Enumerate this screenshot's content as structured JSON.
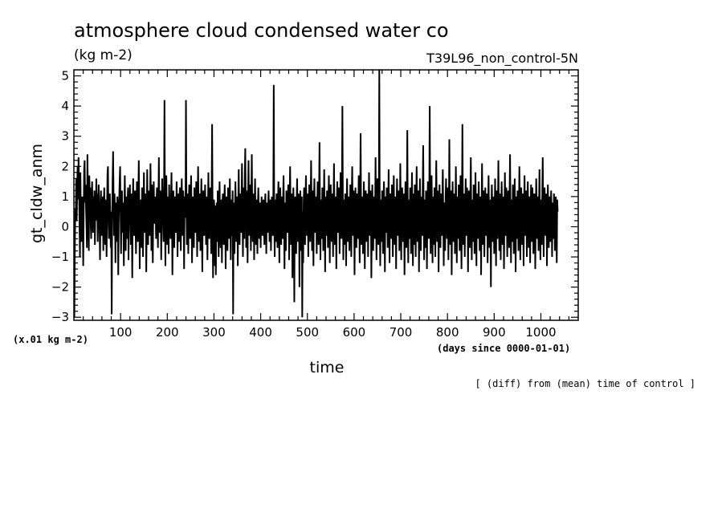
{
  "chart_data": {
    "type": "line",
    "title": "atmosphere cloud condensed water co",
    "units": "(kg m-2)",
    "experiment": "T39L96_non_control-5N",
    "xlabel": "time",
    "ylabel": "gt_cldw_anm",
    "x_units": "(days since 0000-01-01)",
    "y_scale_note": "(x.01 kg m-2)",
    "footnote": "[ (diff) from (mean) time of control ]",
    "xlim": [
      0,
      1080
    ],
    "ylim": [
      -3.1,
      5.2
    ],
    "x_ticks": [
      100,
      200,
      300,
      400,
      500,
      600,
      700,
      800,
      900,
      1000
    ],
    "x_tick_labels": [
      "100",
      "200",
      "300",
      "400",
      "500",
      "600",
      "700",
      "800",
      "900",
      "1000"
    ],
    "y_ticks": [
      -3,
      -2,
      -1,
      0,
      1,
      2,
      3,
      4,
      5
    ],
    "y_tick_labels": [
      "−3",
      "−2",
      "−1",
      "0",
      "1",
      "2",
      "3",
      "4",
      "5"
    ],
    "grid": false,
    "series": [
      {
        "color": "#000000",
        "x_start": 1,
        "x_step": 1,
        "values": [
          -3.0,
          -0.8,
          0.6,
          0.3,
          1.6,
          0.2,
          1.2,
          2.0,
          0.9,
          2.3,
          1.5,
          0.1,
          -1.0,
          1.8,
          0.4,
          -0.5,
          0.7,
          1.0,
          0.2,
          -1.3,
          0.5,
          1.9,
          2.2,
          0.8,
          1.4,
          0.6,
          0.0,
          -0.7,
          2.4,
          1.1,
          0.3,
          -0.8,
          1.7,
          0.9,
          1.3,
          0.1,
          -0.4,
          0.8,
          1.5,
          0.6,
          -0.2,
          1.0,
          0.4,
          1.2,
          -0.6,
          0.9,
          0.2,
          1.6,
          0.7,
          1.1,
          -0.5,
          0.3,
          1.4,
          0.8,
          0.0,
          -1.1,
          0.6,
          1.2,
          0.3,
          -0.3,
          0.5,
          1.0,
          -0.8,
          0.7,
          1.3,
          0.2,
          -0.6,
          0.9,
          0.4,
          -1.0,
          0.6,
          1.8,
          2.0,
          0.3,
          -0.4,
          0.8,
          1.1,
          0.2,
          -0.7,
          0.5,
          -2.9,
          0.4,
          1.6,
          2.5,
          0.9,
          -0.3,
          1.1,
          0.6,
          -1.2,
          0.8,
          0.3,
          -0.5,
          1.0,
          0.7,
          -1.6,
          0.2,
          0.9,
          1.5,
          2.0,
          0.4,
          -0.9,
          0.6,
          1.2,
          -0.2,
          0.8,
          0.1,
          -1.3,
          0.5,
          1.7,
          0.3,
          -0.8,
          1.0,
          0.6,
          -0.4,
          0.9,
          1.3,
          -1.1,
          0.2,
          0.7,
          1.4,
          0.5,
          -0.6,
          1.1,
          0.3,
          -1.7,
          0.8,
          1.6,
          0.4,
          -0.3,
          0.9,
          1.2,
          0.1,
          -0.9,
          0.6,
          1.5,
          0.2,
          -0.5,
          1.0,
          2.2,
          0.7,
          -1.4,
          0.5,
          0.9,
          0.3,
          -0.7,
          1.3,
          0.6,
          -1.0,
          0.8,
          1.8,
          0.4,
          -0.2,
          1.1,
          0.7,
          -1.5,
          0.3,
          1.9,
          0.6,
          -0.6,
          1.2,
          0.9,
          -0.3,
          0.5,
          2.1,
          0.8,
          -0.8,
          1.4,
          0.2,
          -1.2,
          0.7,
          1.5,
          0.4,
          0.1,
          1.0,
          0.6,
          -0.4,
          0.9,
          1.3,
          0.3,
          -0.7,
          0.8,
          2.3,
          0.5,
          -0.2,
          1.2,
          0.7,
          -1.1,
          0.4,
          1.6,
          0.9,
          0.2,
          -0.5,
          1.1,
          4.2,
          0.6,
          -1.3,
          0.8,
          1.7,
          0.3,
          -0.6,
          1.0,
          0.5,
          -0.9,
          1.4,
          0.7,
          0.1,
          -0.4,
          0.9,
          1.8,
          0.4,
          -1.6,
          0.6,
          1.2,
          0.3,
          -0.7,
          1.0,
          0.8,
          -0.2,
          0.5,
          1.5,
          0.6,
          -1.0,
          1.1,
          0.4,
          -0.5,
          0.9,
          1.3,
          0.2,
          -0.8,
          0.7,
          1.6,
          0.5,
          -0.3,
          1.2,
          0.8,
          -1.4,
          0.6,
          1.0,
          0.3,
          4.2,
          0.7,
          -0.6,
          1.1,
          0.5,
          -0.9,
          0.8,
          1.4,
          0.2,
          -0.4,
          0.9,
          1.7,
          0.6,
          -1.2,
          0.4,
          1.0,
          0.7,
          -0.7,
          1.3,
          0.5,
          -0.2,
          0.8,
          1.5,
          0.3,
          -1.0,
          0.9,
          2.0,
          0.6,
          -0.5,
          1.1,
          0.4,
          -0.8,
          0.7,
          1.6,
          0.2,
          -1.5,
          0.5,
          1.2,
          0.9,
          -0.3,
          0.6,
          1.4,
          0.3,
          -0.6,
          1.0,
          0.7,
          -1.1,
          0.5,
          1.8,
          0.4,
          -0.4,
          0.8,
          1.3,
          0.6,
          -0.9,
          1.1,
          3.4,
          0.5,
          -1.7,
          0.3,
          0.9,
          0.6,
          -1.3,
          0.7,
          -1.6,
          0.4,
          0.8,
          -0.5,
          1.2,
          0.3,
          -1.0,
          0.6,
          1.5,
          0.2,
          -0.7,
          0.9,
          0.4,
          -1.2,
          0.7,
          1.1,
          0.3,
          -0.6,
          0.8,
          1.4,
          0.5,
          -1.4,
          0.6,
          1.0,
          0.2,
          -0.8,
          1.3,
          0.7,
          -0.4,
          0.5,
          1.6,
          0.3,
          -1.1,
          0.9,
          0.6,
          -0.3,
          1.2,
          -2.9,
          0.8,
          0.4,
          -0.9,
          0.7,
          1.5,
          0.3,
          -0.5,
          1.0,
          0.6,
          -1.3,
          0.8,
          1.9,
          0.4,
          -0.6,
          1.1,
          0.7,
          -0.2,
          0.9,
          2.1,
          0.5,
          -1.0,
          1.3,
          0.6,
          -0.4,
          1.7,
          2.6,
          0.8,
          -0.7,
          1.2,
          0.4,
          -1.2,
          0.9,
          2.2,
          0.6,
          -0.3,
          1.4,
          0.7,
          -0.8,
          1.0,
          2.4,
          0.5,
          -0.5,
          1.1,
          0.8,
          -1.1,
          0.6,
          1.6,
          0.3,
          -0.6,
          0.9,
          0.5,
          -0.9,
          0.7,
          1.3,
          0.4,
          -0.4,
          0.8,
          0.6,
          -0.7,
          0.5,
          1.0,
          0.3,
          -0.3,
          0.7,
          0.9,
          0.2,
          -0.6,
          0.6,
          1.1,
          0.4,
          -0.9,
          0.8,
          0.5,
          -0.2,
          0.7,
          1.2,
          0.3,
          -0.5,
          0.6,
          0.9,
          -0.8,
          0.5,
          1.0,
          0.7,
          -0.3,
          0.8,
          4.7,
          0.4,
          -1.0,
          0.9,
          0.6,
          -0.5,
          1.1,
          0.3,
          -0.7,
          0.8,
          1.5,
          0.5,
          -1.2,
          0.7,
          1.3,
          0.2,
          -0.6,
          1.0,
          0.6,
          -0.4,
          0.9,
          1.7,
          0.3,
          -1.4,
          0.8,
          0.5,
          -0.8,
          1.2,
          0.7,
          -0.2,
          0.6,
          1.4,
          0.4,
          -1.1,
          0.9,
          2.0,
          0.5,
          -0.6,
          1.1,
          0.8,
          -1.7,
          0.6,
          1.3,
          0.3,
          -2.5,
          0.7,
          1.0,
          0.4,
          -0.9,
          0.8,
          1.6,
          0.5,
          -0.5,
          1.1,
          0.7,
          -2.0,
          0.6,
          1.2,
          0.3,
          -0.8,
          1.0,
          -3.0,
          0.5,
          -1.2,
          0.8,
          1.3,
          0.4,
          -0.6,
          0.9,
          1.7,
          0.6,
          -0.3,
          1.1,
          0.5,
          -1.0,
          0.7,
          1.4,
          0.3,
          -0.5,
          0.9,
          2.2,
          0.6,
          -0.8,
          1.2,
          0.4,
          -1.3,
          0.8,
          1.6,
          0.5,
          -0.2,
          1.0,
          0.7,
          -0.9,
          0.6,
          1.5,
          0.3,
          -0.6,
          1.1,
          2.8,
          0.5,
          -1.1,
          0.9,
          0.6,
          -0.4,
          1.3,
          0.7,
          -0.8,
          0.5,
          1.9,
          0.4,
          -1.5,
          1.0,
          0.6,
          -0.3,
          1.2,
          0.8,
          -0.7,
          0.6,
          1.7,
          0.4,
          -1.2,
          0.9,
          1.4,
          0.5,
          -0.5,
          1.1,
          0.7,
          -1.0,
          0.8,
          2.1,
          0.3,
          -0.6,
          1.0,
          0.6,
          -1.4,
          0.7,
          1.5,
          0.4,
          -0.2,
          1.3,
          0.8,
          -0.9,
          0.6,
          1.8,
          0.5,
          -0.4,
          1.2,
          4.0,
          0.7,
          -1.1,
          0.9,
          0.3,
          -0.6,
          1.1,
          0.6,
          -1.3,
          0.8,
          1.6,
          0.4,
          -0.5,
          1.0,
          0.7,
          -0.8,
          0.5,
          1.4,
          0.3,
          -1.0,
          0.9,
          2.0,
          0.6,
          -0.3,
          1.2,
          0.8,
          -1.6,
          0.5,
          1.3,
          0.4,
          -0.7,
          1.1,
          0.9,
          -0.4,
          0.6,
          1.7,
          0.3,
          -1.2,
          0.8,
          3.1,
          0.5,
          -0.6,
          1.0,
          0.7,
          -0.9,
          0.6,
          1.5,
          0.4,
          -1.4,
          0.9,
          1.2,
          0.3,
          -0.5,
          1.1,
          0.8,
          -1.0,
          0.6,
          1.8,
          0.5,
          -0.3,
          1.2,
          0.7,
          -1.7,
          0.4,
          1.4,
          0.6,
          -0.8,
          1.0,
          0.9,
          -0.4,
          0.5,
          2.3,
          0.3,
          -1.1,
          0.8,
          1.6,
          0.6,
          -0.6,
          1.1,
          5.2,
          0.4,
          -1.3,
          0.9,
          0.7,
          -0.5,
          1.2,
          0.5,
          -0.9,
          0.8,
          1.5,
          0.3,
          -1.5,
          1.0,
          0.6,
          -0.2,
          1.3,
          0.7,
          -0.7,
          0.5,
          1.9,
          0.4,
          -1.2,
          0.9,
          1.1,
          0.6,
          -0.4,
          1.4,
          0.8,
          -1.0,
          0.5,
          1.7,
          0.3,
          -0.6,
          1.0,
          0.7,
          -1.4,
          0.6,
          1.6,
          0.4,
          -0.3,
          1.2,
          0.9,
          -0.8,
          0.5,
          2.1,
          0.3,
          -1.1,
          0.8,
          1.3,
          0.6,
          -0.5,
          1.1,
          0.7,
          -1.6,
          0.4,
          1.5,
          0.5,
          -0.7,
          1.0,
          3.2,
          0.3,
          -1.2,
          0.9,
          0.6,
          -0.4,
          1.3,
          0.8,
          -0.9,
          0.5,
          1.8,
          0.4,
          -1.3,
          1.1,
          0.7,
          -0.6,
          1.4,
          0.6,
          -1.0,
          0.8,
          2.0,
          0.3,
          -0.5,
          1.2,
          0.9,
          -1.5,
          0.5,
          1.6,
          0.4,
          -0.8,
          1.0,
          0.7,
          -0.3,
          1.3,
          2.7,
          0.6,
          -1.1,
          0.9,
          0.5,
          -0.7,
          1.2,
          0.8,
          -1.4,
          0.4,
          1.5,
          0.3,
          -0.4,
          1.1,
          4.0,
          0.6,
          -0.9,
          0.8,
          1.7,
          0.5,
          -1.2,
          1.0,
          0.7,
          -0.6,
          1.3,
          0.4,
          -1.0,
          0.9,
          2.2,
          0.6,
          -0.5,
          1.2,
          0.8,
          -1.5,
          0.5,
          1.4,
          0.3,
          -0.7,
          1.1,
          0.7,
          -0.3,
          0.9,
          1.9,
          0.4,
          -1.3,
          0.8,
          0.6,
          -0.8,
          1.0,
          1.6,
          0.5,
          -0.4,
          1.3,
          0.7,
          -1.1,
          0.6,
          2.9,
          0.4,
          -0.6,
          1.2,
          0.9,
          -1.6,
          0.5,
          1.5,
          0.3,
          -0.5,
          1.1,
          0.8,
          -0.9,
          0.6,
          2.0,
          0.4,
          -1.2,
          1.0,
          0.7,
          -0.4,
          1.4,
          0.5,
          -0.8,
          0.9,
          1.7,
          0.3,
          -1.4,
          0.8,
          3.4,
          0.6,
          -0.6,
          1.1,
          0.7,
          -1.0,
          0.5,
          1.6,
          0.4,
          -0.3,
          1.3,
          0.8,
          -1.5,
          0.6,
          1.2,
          0.5,
          -0.7,
          1.0,
          2.3,
          0.3,
          -1.1,
          0.9,
          0.6,
          -0.5,
          1.4,
          0.7,
          -0.9,
          0.4,
          1.8,
          0.5,
          -1.3,
          1.1,
          0.8,
          -0.4,
          0.6,
          1.5,
          0.3,
          -0.8,
          1.0,
          0.7,
          -1.6,
          0.5,
          2.1,
          0.4,
          -0.6,
          1.2,
          0.9,
          -1.0,
          0.6,
          1.3,
          0.3,
          -0.3,
          1.1,
          0.7,
          -1.2,
          0.5,
          1.7,
          0.4,
          -0.7,
          0.9,
          0.8,
          -2.0,
          0.6,
          1.4,
          0.5,
          -0.5,
          1.0,
          0.7,
          -0.9,
          0.4,
          1.6,
          0.3,
          -1.3,
          1.2,
          0.8,
          -0.4,
          0.6,
          2.2,
          0.5,
          -0.8,
          1.1,
          0.7,
          -1.1,
          0.4,
          1.5,
          0.6,
          -0.6,
          1.0,
          0.9,
          -1.4,
          0.5,
          1.8,
          0.3,
          -0.3,
          1.3,
          0.7,
          -1.0,
          0.6,
          1.2,
          0.4,
          -0.7,
          1.1,
          2.4,
          0.5,
          -1.2,
          0.9,
          0.8,
          -0.5,
          1.4,
          0.6,
          -0.9,
          0.7,
          1.6,
          0.3,
          -1.5,
          1.0,
          0.5,
          -0.4,
          1.2,
          0.8,
          -0.8,
          0.6,
          2.0,
          0.4,
          -1.1,
          0.9,
          1.3,
          0.5,
          -0.6,
          1.1,
          0.7,
          -1.3,
          0.6,
          1.7,
          0.3,
          -0.3,
          1.2,
          0.9,
          -1.0,
          0.5,
          1.5,
          0.4,
          -0.7,
          1.0,
          0.8,
          -1.2,
          0.6,
          1.4,
          0.3,
          -0.5,
          1.3,
          0.7,
          -0.9,
          0.5,
          1.1,
          0.6,
          -1.4,
          0.4,
          1.6,
          0.8,
          -0.4,
          1.0,
          0.5,
          -0.8,
          0.7,
          1.9,
          0.3,
          -1.1,
          0.9,
          0.6,
          -0.6,
          1.2,
          2.3,
          0.5,
          -1.0,
          0.8,
          1.3,
          0.4,
          -0.3,
          1.1,
          0.7,
          -1.3,
          0.6,
          1.4,
          0.5,
          -0.7,
          1.0,
          0.9,
          -0.5,
          0.6,
          1.2,
          0.3,
          -1.0,
          0.8,
          0.5,
          -0.4,
          1.1,
          0.7,
          -0.8,
          0.4,
          1.0,
          0.6,
          -1.2,
          0.9,
          0.5
        ]
      }
    ]
  }
}
